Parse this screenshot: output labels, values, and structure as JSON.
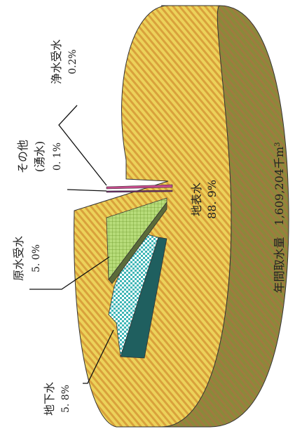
{
  "chart_data": {
    "type": "pie",
    "orientation": "rotated-90-clockwise",
    "style": "3d-exploded",
    "total_label": "年間取水量　1,609,204千m",
    "total_unit_superscript": "3",
    "slices": [
      {
        "name": "地表水",
        "value": 88.9,
        "value_label": "88. 9%",
        "color": "#e8c84a",
        "pattern": "diagonal-stripes"
      },
      {
        "name": "地下水",
        "value": 5.8,
        "value_label": "5. 8%",
        "color": "#3fb6b6",
        "pattern": "checker"
      },
      {
        "name": "原水受水",
        "value": 5.0,
        "value_label": "5. 0%",
        "color": "#9ccc4a",
        "pattern": "grid"
      },
      {
        "name": "その他",
        "name_line2": "(湧水)",
        "value": 0.1,
        "value_label": "0. 1%",
        "color": "#6a2b66",
        "pattern": "solid"
      },
      {
        "name": "浄水受水",
        "value": 0.2,
        "value_label": "0.2%",
        "color": "#c34a8a",
        "pattern": "solid"
      }
    ]
  }
}
